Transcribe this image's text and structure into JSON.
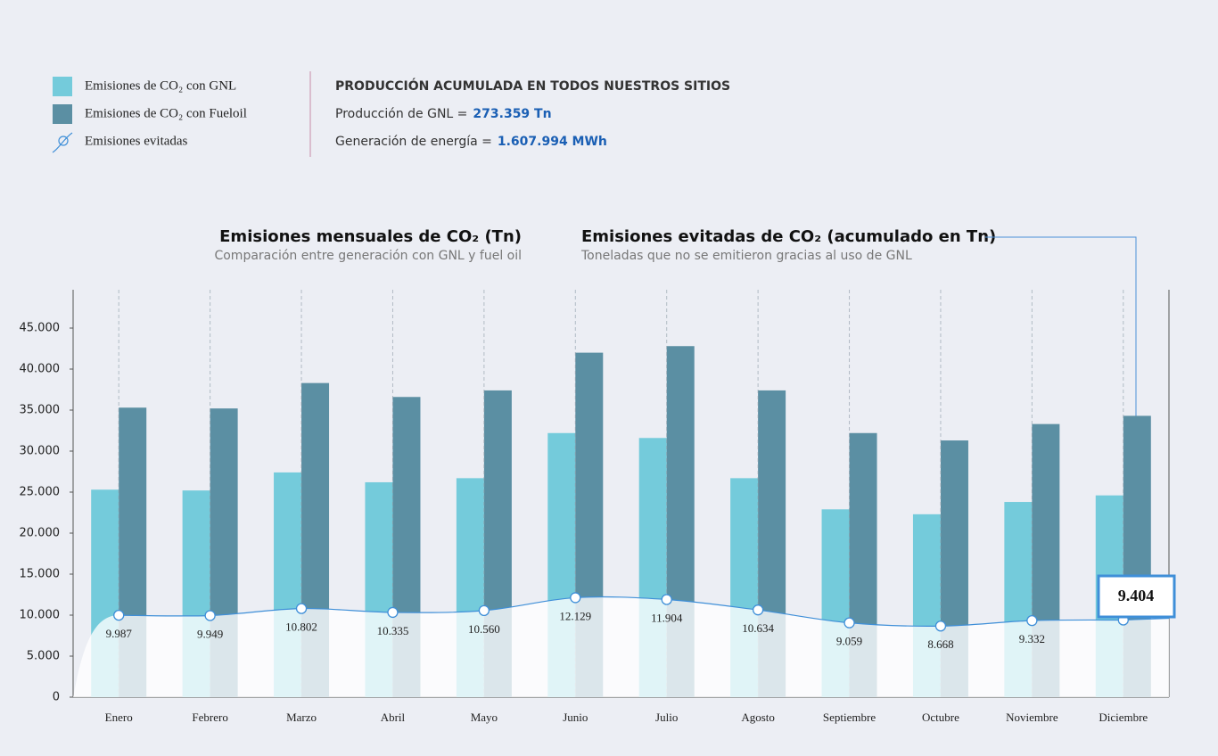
{
  "chart_data": {
    "type": "bar",
    "titles": [
      {
        "title": "Emisiones mensuales de CO₂ (Tn)",
        "subtitle": "Comparación entre generación con GNL y fuel oil"
      },
      {
        "title": "Emisiones evitadas de CO₂ (acumulado en Tn)",
        "subtitle": "Toneladas que no se emitieron gracias al uso de GNL"
      }
    ],
    "categories": [
      "Enero",
      "Febrero",
      "Marzo",
      "Abril",
      "Mayo",
      "Junio",
      "Julio",
      "Agosto",
      "Septiembre",
      "Octubre",
      "Noviembre",
      "Diciembre"
    ],
    "series": [
      {
        "name": "Emisiones de CO₂ con GNL",
        "color": "#74cbdb",
        "values": [
          25300,
          25200,
          27400,
          26200,
          26700,
          32200,
          31600,
          26700,
          22900,
          22300,
          23800,
          24600
        ]
      },
      {
        "name": "Emisiones de CO₂ con Fueloil",
        "color": "#5b8fa3",
        "values": [
          35300,
          35200,
          38300,
          36600,
          37400,
          42000,
          42800,
          37400,
          32200,
          31300,
          33300,
          34300
        ]
      },
      {
        "name": "Emisiones evitadas",
        "type": "area",
        "color": "#3f8fd8",
        "values": [
          9987,
          9949,
          10802,
          10335,
          10560,
          12129,
          11904,
          10634,
          9059,
          8668,
          9332,
          9404
        ],
        "value_labels": [
          "9.987",
          "9.949",
          "10.802",
          "10.335",
          "10.560",
          "12.129",
          "11.904",
          "10.634",
          "9.059",
          "8.668",
          "9.332",
          "9.404"
        ]
      }
    ],
    "ylim": [
      0,
      50000
    ],
    "yticks": [
      0,
      {
        "value": 5000,
        "label": "5.000"
      },
      {
        "value": 10000,
        "label": "10.000"
      },
      {
        "value": 15000,
        "label": "15.000"
      },
      {
        "value": 20000,
        "label": "20.000"
      },
      {
        "value": 25000,
        "label": "25.000"
      },
      {
        "value": 30000,
        "label": "30.000"
      },
      {
        "value": 35000,
        "label": "35.000"
      },
      {
        "value": 40000,
        "label": "40.000"
      },
      {
        "value": 45000,
        "label": "45.000"
      }
    ]
  },
  "summary": {
    "heading": "PRODUCCIÓN ACUMULADA EN TODOS NUESTROS SITIOS",
    "items": [
      {
        "label": "Producción de GNL =",
        "value": "273.359 Tn"
      },
      {
        "label": "Generación de energía =",
        "value": "1.607.994 MWh"
      }
    ]
  }
}
